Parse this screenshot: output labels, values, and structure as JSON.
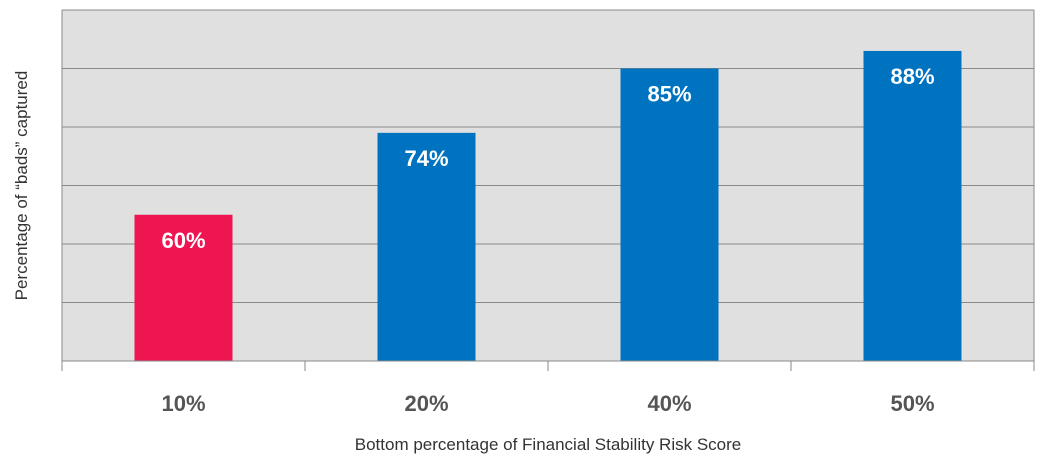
{
  "chart_data": {
    "type": "bar",
    "categories": [
      "10%",
      "20%",
      "40%",
      "50%"
    ],
    "values": [
      60,
      74,
      85,
      88
    ],
    "data_labels": [
      "60%",
      "74%",
      "85%",
      "88%"
    ],
    "title": "",
    "xlabel": "Bottom percentage of Financial Stability Risk Score",
    "ylabel": "Percentage of “bads” captured",
    "ylim": [
      35,
      95
    ],
    "gridlines": [
      35,
      45,
      55,
      65,
      75,
      85,
      95
    ],
    "grid": true,
    "bar_colors": [
      "#ED1651",
      "#0073C0",
      "#0073C0",
      "#0073C0"
    ],
    "plot_background": "#E0E0E0",
    "gridline_color": "#8A8A8A"
  }
}
